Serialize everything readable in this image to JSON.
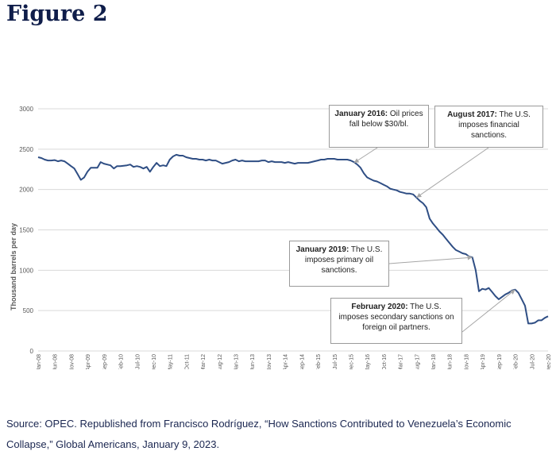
{
  "page": {
    "title": "Figure 2",
    "source": "Source: OPEC. Republished from Francisco Rodríguez, “How Sanctions Contributed to Venezuela’s Economic Collapse,” Global Americans, January 9, 2023."
  },
  "colors": {
    "line": "#2f4e84",
    "title": "#0f1d4a",
    "grid": "#d9d9d9",
    "axis_text": "#595959"
  },
  "chart_data": {
    "type": "line",
    "title": "",
    "xlabel": "",
    "ylabel": "Thousand barrels per day",
    "ylim": [
      0,
      3000
    ],
    "yticks": [
      0,
      500,
      1000,
      1500,
      2000,
      2500,
      3000
    ],
    "xlim": [
      "2008-01",
      "2020-12"
    ],
    "xticks": [
      "Jan-08",
      "Jun-08",
      "Nov-08",
      "Apr-09",
      "Sep-09",
      "Feb-10",
      "Jul-10",
      "Dec-10",
      "May-11",
      "Oct-11",
      "Mar-12",
      "Aug-12",
      "Jan-13",
      "Jun-13",
      "Nov-13",
      "Apr-14",
      "Sep-14",
      "Feb-15",
      "Jul-15",
      "Dec-15",
      "May-16",
      "Oct-16",
      "Mar-17",
      "Aug-17",
      "Jan-18",
      "Jun-18",
      "Nov-18",
      "Apr-19",
      "Sep-19",
      "Feb-20",
      "Jul-20",
      "Dec-20"
    ],
    "grid": "horizontal",
    "legend": "none",
    "series": [
      {
        "points": [
          [
            "2008-01",
            2400
          ],
          [
            "2008-02",
            2390
          ],
          [
            "2008-03",
            2370
          ],
          [
            "2008-04",
            2360
          ],
          [
            "2008-05",
            2360
          ],
          [
            "2008-06",
            2365
          ],
          [
            "2008-07",
            2350
          ],
          [
            "2008-08",
            2360
          ],
          [
            "2008-09",
            2350
          ],
          [
            "2008-10",
            2320
          ],
          [
            "2008-11",
            2290
          ],
          [
            "2008-12",
            2260
          ],
          [
            "2009-01",
            2190
          ],
          [
            "2009-02",
            2120
          ],
          [
            "2009-03",
            2150
          ],
          [
            "2009-04",
            2220
          ],
          [
            "2009-05",
            2270
          ],
          [
            "2009-06",
            2270
          ],
          [
            "2009-07",
            2270
          ],
          [
            "2009-08",
            2340
          ],
          [
            "2009-09",
            2320
          ],
          [
            "2009-10",
            2310
          ],
          [
            "2009-11",
            2300
          ],
          [
            "2009-12",
            2260
          ],
          [
            "2010-01",
            2290
          ],
          [
            "2010-02",
            2290
          ],
          [
            "2010-03",
            2295
          ],
          [
            "2010-04",
            2300
          ],
          [
            "2010-05",
            2310
          ],
          [
            "2010-06",
            2280
          ],
          [
            "2010-07",
            2290
          ],
          [
            "2010-08",
            2280
          ],
          [
            "2010-09",
            2260
          ],
          [
            "2010-10",
            2280
          ],
          [
            "2010-11",
            2220
          ],
          [
            "2010-12",
            2280
          ],
          [
            "2011-01",
            2330
          ],
          [
            "2011-02",
            2290
          ],
          [
            "2011-03",
            2300
          ],
          [
            "2011-04",
            2290
          ],
          [
            "2011-05",
            2370
          ],
          [
            "2011-06",
            2410
          ],
          [
            "2011-07",
            2430
          ],
          [
            "2011-08",
            2420
          ],
          [
            "2011-09",
            2420
          ],
          [
            "2011-10",
            2400
          ],
          [
            "2011-11",
            2390
          ],
          [
            "2011-12",
            2380
          ],
          [
            "2012-01",
            2380
          ],
          [
            "2012-02",
            2370
          ],
          [
            "2012-03",
            2370
          ],
          [
            "2012-04",
            2360
          ],
          [
            "2012-05",
            2370
          ],
          [
            "2012-06",
            2360
          ],
          [
            "2012-07",
            2360
          ],
          [
            "2012-08",
            2340
          ],
          [
            "2012-09",
            2320
          ],
          [
            "2012-10",
            2330
          ],
          [
            "2012-11",
            2340
          ],
          [
            "2012-12",
            2360
          ],
          [
            "2013-01",
            2370
          ],
          [
            "2013-02",
            2350
          ],
          [
            "2013-03",
            2360
          ],
          [
            "2013-04",
            2350
          ],
          [
            "2013-05",
            2350
          ],
          [
            "2013-06",
            2350
          ],
          [
            "2013-07",
            2350
          ],
          [
            "2013-08",
            2350
          ],
          [
            "2013-09",
            2360
          ],
          [
            "2013-10",
            2360
          ],
          [
            "2013-11",
            2340
          ],
          [
            "2013-12",
            2350
          ],
          [
            "2014-01",
            2340
          ],
          [
            "2014-02",
            2340
          ],
          [
            "2014-03",
            2340
          ],
          [
            "2014-04",
            2330
          ],
          [
            "2014-05",
            2340
          ],
          [
            "2014-06",
            2330
          ],
          [
            "2014-07",
            2320
          ],
          [
            "2014-08",
            2330
          ],
          [
            "2014-09",
            2330
          ],
          [
            "2014-10",
            2330
          ],
          [
            "2014-11",
            2330
          ],
          [
            "2014-12",
            2340
          ],
          [
            "2015-01",
            2350
          ],
          [
            "2015-02",
            2360
          ],
          [
            "2015-03",
            2370
          ],
          [
            "2015-04",
            2370
          ],
          [
            "2015-05",
            2380
          ],
          [
            "2015-06",
            2380
          ],
          [
            "2015-07",
            2380
          ],
          [
            "2015-08",
            2370
          ],
          [
            "2015-09",
            2370
          ],
          [
            "2015-10",
            2370
          ],
          [
            "2015-11",
            2370
          ],
          [
            "2015-12",
            2360
          ],
          [
            "2016-01",
            2340
          ],
          [
            "2016-02",
            2310
          ],
          [
            "2016-03",
            2270
          ],
          [
            "2016-04",
            2200
          ],
          [
            "2016-05",
            2150
          ],
          [
            "2016-06",
            2130
          ],
          [
            "2016-07",
            2110
          ],
          [
            "2016-08",
            2100
          ],
          [
            "2016-09",
            2080
          ],
          [
            "2016-10",
            2060
          ],
          [
            "2016-11",
            2040
          ],
          [
            "2016-12",
            2010
          ],
          [
            "2017-01",
            2000
          ],
          [
            "2017-02",
            1990
          ],
          [
            "2017-03",
            1970
          ],
          [
            "2017-04",
            1960
          ],
          [
            "2017-05",
            1950
          ],
          [
            "2017-06",
            1950
          ],
          [
            "2017-07",
            1940
          ],
          [
            "2017-08",
            1900
          ],
          [
            "2017-09",
            1860
          ],
          [
            "2017-10",
            1830
          ],
          [
            "2017-11",
            1780
          ],
          [
            "2017-12",
            1640
          ],
          [
            "2018-01",
            1580
          ],
          [
            "2018-02",
            1530
          ],
          [
            "2018-03",
            1480
          ],
          [
            "2018-04",
            1440
          ],
          [
            "2018-05",
            1390
          ],
          [
            "2018-06",
            1340
          ],
          [
            "2018-07",
            1290
          ],
          [
            "2018-08",
            1250
          ],
          [
            "2018-09",
            1230
          ],
          [
            "2018-10",
            1210
          ],
          [
            "2018-11",
            1200
          ],
          [
            "2018-12",
            1170
          ],
          [
            "2019-01",
            1160
          ],
          [
            "2019-02",
            1000
          ],
          [
            "2019-03",
            740
          ],
          [
            "2019-04",
            770
          ],
          [
            "2019-05",
            760
          ],
          [
            "2019-06",
            780
          ],
          [
            "2019-07",
            730
          ],
          [
            "2019-08",
            680
          ],
          [
            "2019-09",
            640
          ],
          [
            "2019-10",
            670
          ],
          [
            "2019-11",
            700
          ],
          [
            "2019-12",
            720
          ],
          [
            "2020-01",
            750
          ],
          [
            "2020-02",
            760
          ],
          [
            "2020-03",
            720
          ],
          [
            "2020-04",
            640
          ],
          [
            "2020-05",
            560
          ],
          [
            "2020-06",
            340
          ],
          [
            "2020-07",
            340
          ],
          [
            "2020-08",
            350
          ],
          [
            "2020-09",
            380
          ],
          [
            "2020-10",
            380
          ],
          [
            "2020-11",
            410
          ],
          [
            "2020-12",
            430
          ]
        ]
      }
    ],
    "annotations": [
      {
        "bold": "January 2016:",
        "text": " Oil prices fall below $30/bl.",
        "target": [
          "2016-01",
          2330
        ]
      },
      {
        "bold": "August 2017:",
        "text": " The U.S. imposes financial sanctions.",
        "target": [
          "2017-08",
          1900
        ]
      },
      {
        "bold": "January 2019:",
        "text": " The U.S. imposes primary oil sanctions.",
        "target": [
          "2019-01",
          1160
        ]
      },
      {
        "bold": "February 2020:",
        "text": " The U.S. imposes secondary sanctions on foreign oil partners.",
        "target": [
          "2020-02",
          760
        ]
      }
    ]
  }
}
